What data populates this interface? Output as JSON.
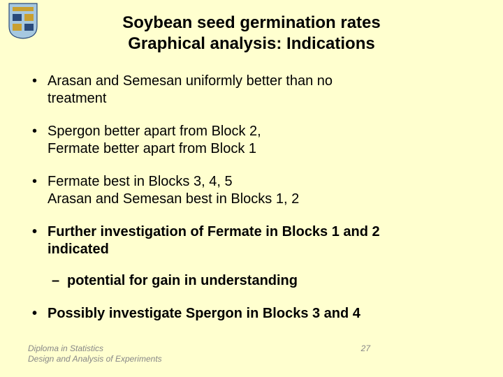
{
  "logo": {
    "bg": "#a6c8e0",
    "accent": "#2a4a7a",
    "gold": "#c9a030"
  },
  "title_line1": "Soybean seed germination rates",
  "title_line2": "Graphical analysis:  Indications",
  "bullets": [
    {
      "bold": false,
      "lines": [
        "Arasan and Semesan uniformly better than no",
        "treatment"
      ]
    },
    {
      "bold": false,
      "lines": [
        "Spergon better apart from Block 2,",
        "Fermate better apart from Block 1"
      ]
    },
    {
      "bold": false,
      "lines": [
        "Fermate best in Blocks 3, 4, 5",
        "Arasan and Semesan best in Blocks 1, 2"
      ]
    },
    {
      "bold": true,
      "lines": [
        "Further investigation of Fermate in Blocks 1 and 2",
        "indicated"
      ],
      "sub": [
        "potential for gain in understanding"
      ]
    },
    {
      "bold": true,
      "lines": [
        "Possibly investigate Spergon in Blocks 3 and 4"
      ]
    }
  ],
  "footer": {
    "line1": "Diploma in Statistics",
    "line2": "Design and Analysis of Experiments",
    "page": "27"
  },
  "typography": {
    "title_fontsize": 24,
    "body_fontsize": 20,
    "footer_fontsize": 12,
    "font_family": "Arial"
  },
  "colors": {
    "background": "#ffffcf",
    "text": "#000000",
    "footer_text": "#878787"
  }
}
